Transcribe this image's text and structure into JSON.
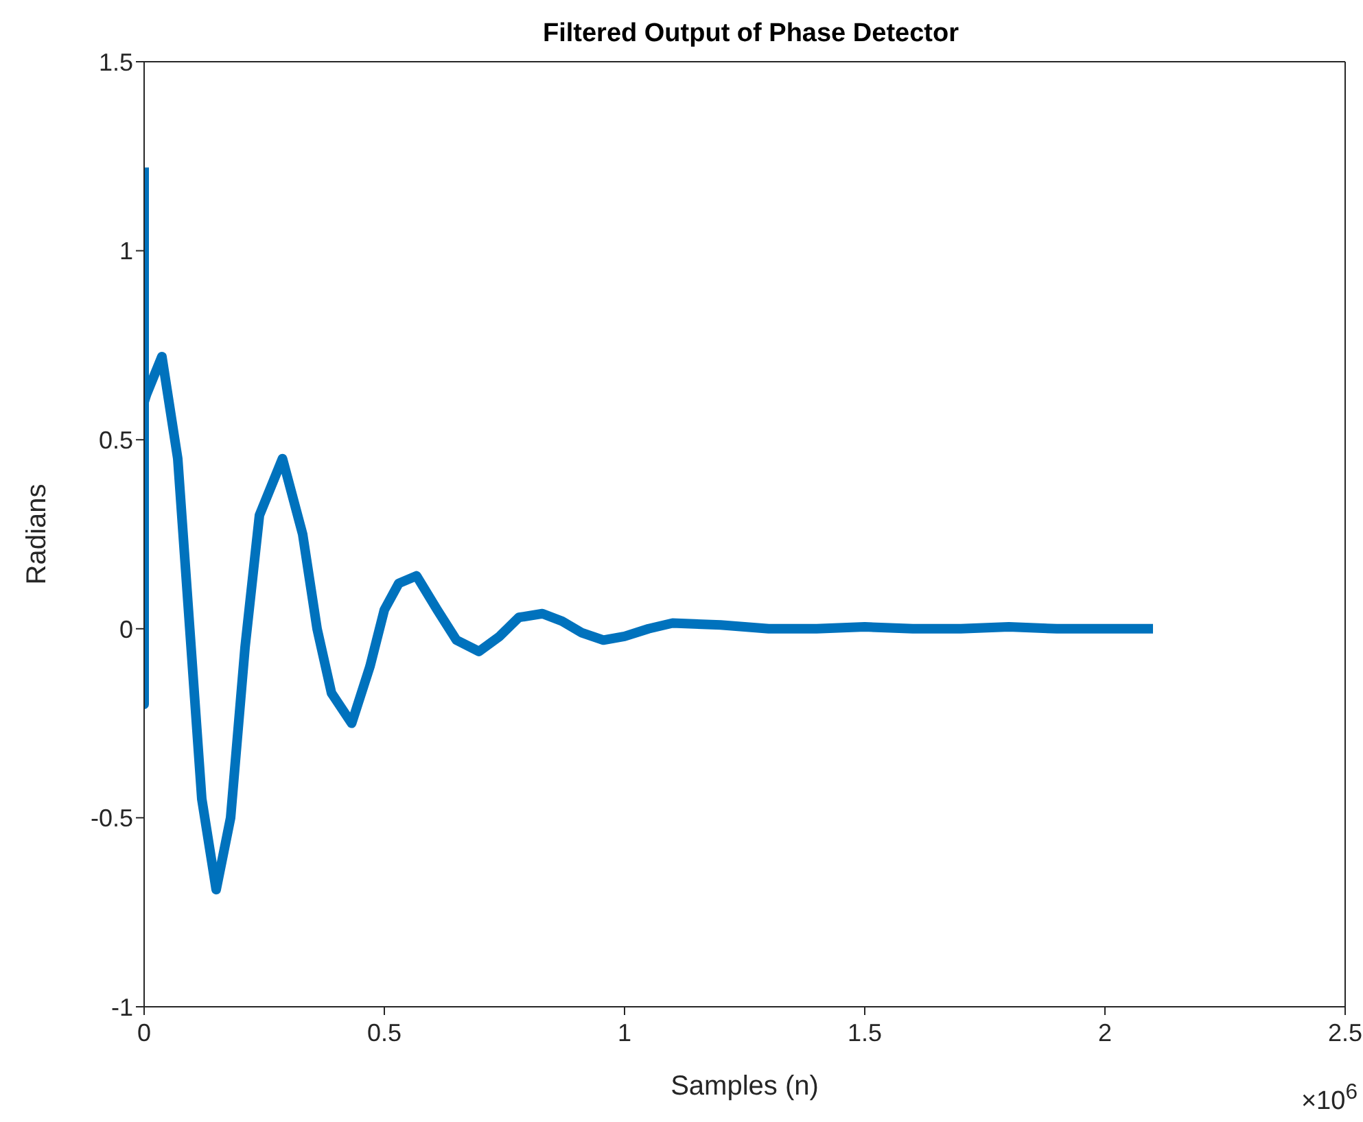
{
  "chart_data": {
    "type": "line",
    "title": "Filtered Output of Phase Detector",
    "xlabel": "Samples (n)",
    "ylabel": "Radians",
    "annotations": [
      "×10$^{6}$"
    ],
    "x": [
      0,
      0,
      0,
      0.005,
      0.037,
      0.07,
      0.095,
      0.12,
      0.15,
      0.18,
      0.21,
      0.24,
      0.288,
      0.33,
      0.36,
      0.39,
      0.432,
      0.47,
      0.5,
      0.53,
      0.567,
      0.61,
      0.65,
      0.697,
      0.74,
      0.78,
      0.829,
      0.87,
      0.91,
      0.956,
      1.0,
      1.05,
      1.1,
      1.2,
      1.3,
      1.4,
      1.5,
      1.6,
      1.7,
      1.8,
      1.9,
      2.0,
      2.1
    ],
    "series": [
      {
        "color": "#0072bd",
        "values": [
          1.22,
          -0.2,
          0.6,
          0.62,
          0.72,
          0.45,
          0.0,
          -0.45,
          -0.69,
          -0.5,
          -0.05,
          0.3,
          0.45,
          0.25,
          0.0,
          -0.17,
          -0.25,
          -0.1,
          0.05,
          0.12,
          0.14,
          0.05,
          -0.03,
          -0.06,
          -0.02,
          0.03,
          0.04,
          0.02,
          -0.01,
          -0.03,
          -0.02,
          0.0,
          0.015,
          0.01,
          0.0,
          0.0,
          0.005,
          0.0,
          0.0,
          0.005,
          0.0,
          0.0,
          0.0
        ]
      }
    ],
    "xlim": [
      0,
      2.5
    ],
    "xticks": [
      0,
      0.5,
      1,
      1.5,
      2,
      2.5
    ],
    "ylim": [
      -1,
      1.5
    ],
    "yticks": [
      -1,
      -0.5,
      0,
      0.5,
      1,
      1.5
    ],
    "grid": false,
    "legend": false,
    "marker": "none",
    "line_style": "solid"
  }
}
